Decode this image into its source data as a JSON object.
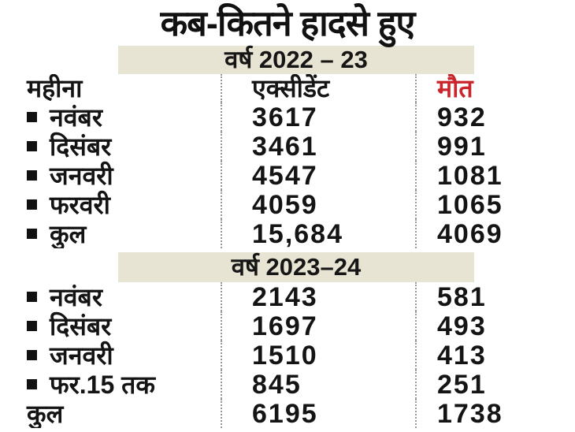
{
  "chart_data": {
    "type": "table",
    "title": "कब-कितने हादसे हुए",
    "columns": {
      "month": "महीना",
      "accidents": "एक्सीडेंट",
      "deaths": "मौत"
    },
    "sections": [
      {
        "label": "वर्ष 2022 – 23",
        "rows": [
          {
            "month": "नवंबर",
            "accidents": "3617",
            "deaths": "932"
          },
          {
            "month": "दिसंबर",
            "accidents": "3461",
            "deaths": "991"
          },
          {
            "month": "जनवरी",
            "accidents": "4547",
            "deaths": "1081"
          },
          {
            "month": "फरवरी",
            "accidents": "4059",
            "deaths": "1065"
          },
          {
            "month": "कुल",
            "accidents": "15,684",
            "deaths": "4069"
          }
        ]
      },
      {
        "label": "वर्ष 2023–24",
        "rows": [
          {
            "month": "नवंबर",
            "accidents": "2143",
            "deaths": "581"
          },
          {
            "month": "दिसंबर",
            "accidents": "1697",
            "deaths": "493"
          },
          {
            "month": "जनवरी",
            "accidents": "1510",
            "deaths": "413"
          },
          {
            "month": "फर.15 तक",
            "accidents": "845",
            "deaths": "251"
          },
          {
            "month": "कुल",
            "accidents": "6195",
            "deaths": "1738"
          }
        ]
      }
    ]
  },
  "colors": {
    "deaths_header_red": "#c9252b",
    "band_background": "#e8e4d3",
    "text_black": "#141414",
    "separator_gray": "#9a9a9a"
  }
}
